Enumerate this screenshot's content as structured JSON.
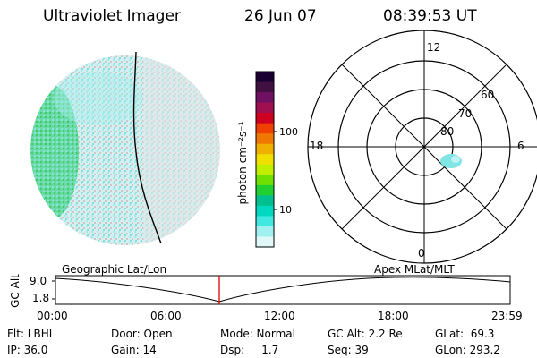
{
  "header": {
    "instrument": "Ultraviolet Imager",
    "date": "26 Jun 07",
    "time": "08:39:53 UT"
  },
  "colorbar": {
    "label": "photon cm⁻²s⁻¹",
    "ticks": [
      "100",
      "10"
    ],
    "colors": [
      "#1a0030",
      "#401040",
      "#701060",
      "#a01050",
      "#d00020",
      "#f04000",
      "#f07800",
      "#f0b000",
      "#f0e000",
      "#c0f000",
      "#70e000",
      "#20d030",
      "#00c090",
      "#00d8c0",
      "#40e8e0",
      "#a0f0f0",
      "#e0f8f8"
    ]
  },
  "geo_panel": {
    "label": "Geographic Lat/Lon",
    "colors": {
      "cyan": "#7fe5e5",
      "green": "#3dcf64",
      "gray": "#cfcfcf"
    }
  },
  "polar_panel": {
    "label": "Apex  MLat/MLT",
    "mlt_labels": [
      "12",
      "18",
      "6",
      "0"
    ],
    "mlat_labels": [
      "60",
      "70",
      "80"
    ]
  },
  "orbit": {
    "ylabel": "GC Alt",
    "ytick_top": "9.0",
    "ytick_bottom": "1.8",
    "xticks": [
      "00:00",
      "06:00",
      "12:00",
      "18:00",
      "23:59"
    ],
    "marker_color": "#e00000"
  },
  "status": {
    "flt": "Flt: LBHL",
    "ip": "IP: 36.0",
    "door": "Door: Open",
    "gain": "Gain: 14",
    "mode": "Mode: Normal",
    "dsp": "Dsp:     1.7",
    "gc_alt": "GC Alt: 2.2 Re",
    "seq": "Seq: 39",
    "glat": "GLat:  69.3",
    "glon": "GLon: 293.2"
  }
}
